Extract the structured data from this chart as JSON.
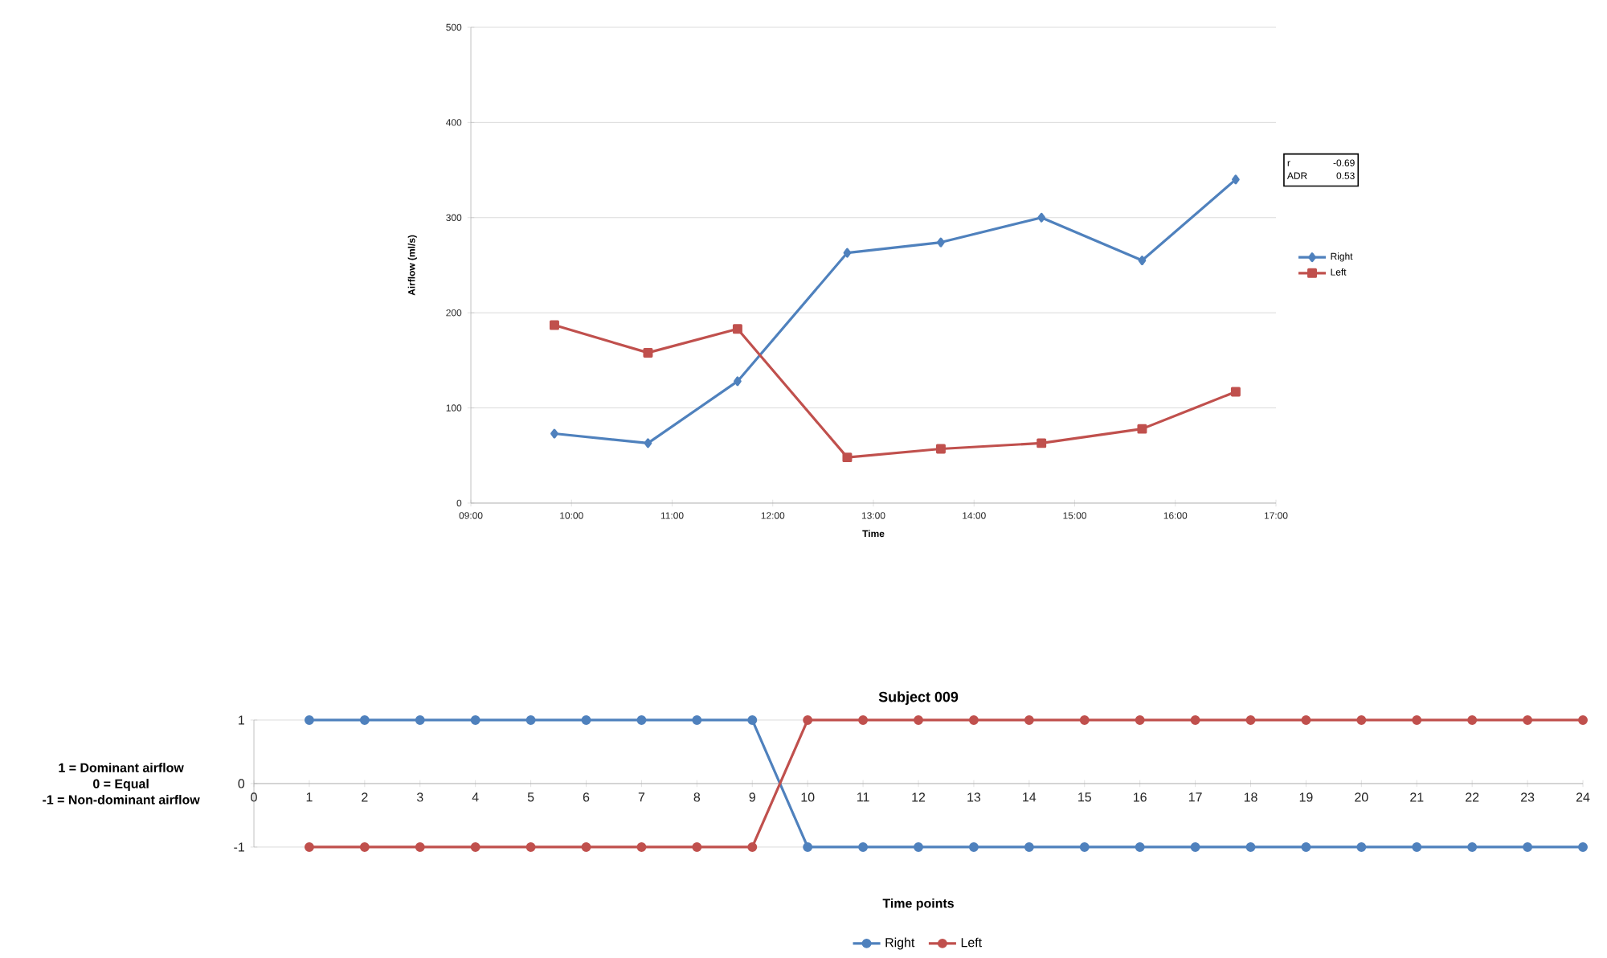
{
  "chart_data": [
    {
      "type": "line",
      "xlabel": "Time",
      "ylabel": "Airflow (ml/s)",
      "annotations": [
        "r",
        "-0.69",
        "ADR",
        "0.53"
      ],
      "xlim": [
        9,
        17
      ],
      "xticks": [
        {
          "value": 9,
          "label": "09:00"
        },
        {
          "value": 10,
          "label": "10:00"
        },
        {
          "value": 11,
          "label": "11:00"
        },
        {
          "value": 12,
          "label": "12:00"
        },
        {
          "value": 13,
          "label": "13:00"
        },
        {
          "value": 14,
          "label": "14:00"
        },
        {
          "value": 15,
          "label": "15:00"
        },
        {
          "value": 16,
          "label": "16:00"
        },
        {
          "value": 17,
          "label": "17:00"
        }
      ],
      "ylim": [
        0,
        500
      ],
      "yticks": [
        0,
        100,
        200,
        300,
        400,
        500
      ],
      "grid": "y",
      "legend": "right",
      "x": [
        9.83,
        10.76,
        11.65,
        12.74,
        13.67,
        14.67,
        15.67,
        16.6
      ],
      "series": [
        {
          "name": "Right",
          "color": "#4f81bd",
          "marker": "diamond",
          "values": [
            73,
            63,
            128,
            263,
            274,
            300,
            255,
            340
          ]
        },
        {
          "name": "Left",
          "color": "#c0504d",
          "marker": "square",
          "values": [
            187,
            158,
            183,
            48,
            57,
            63,
            78,
            117
          ]
        }
      ]
    },
    {
      "type": "line",
      "title": "Subject 009",
      "xlabel": "Time points",
      "annotations": [
        "1 = Dominant airflow",
        "0 = Equal",
        "-1 = Non-dominant airflow"
      ],
      "xlim": [
        0,
        24
      ],
      "xticks": [
        0,
        1,
        2,
        3,
        4,
        5,
        6,
        7,
        8,
        9,
        10,
        11,
        12,
        13,
        14,
        15,
        16,
        17,
        18,
        19,
        20,
        21,
        22,
        23,
        24
      ],
      "ylim": [
        -1,
        1
      ],
      "yticks": [
        -1,
        0,
        1
      ],
      "grid": "y",
      "legend": "bottom",
      "marker": "circle",
      "x": [
        1,
        2,
        3,
        4,
        5,
        6,
        7,
        8,
        9,
        10,
        11,
        12,
        13,
        14,
        15,
        16,
        17,
        18,
        19,
        20,
        21,
        22,
        23,
        24
      ],
      "series": [
        {
          "name": "Right",
          "color": "#4f81bd",
          "values": [
            1,
            1,
            1,
            1,
            1,
            1,
            1,
            1,
            1,
            -1,
            -1,
            -1,
            -1,
            -1,
            -1,
            -1,
            -1,
            -1,
            -1,
            -1,
            -1,
            -1,
            -1,
            -1
          ]
        },
        {
          "name": "Left",
          "color": "#c0504d",
          "values": [
            -1,
            -1,
            -1,
            -1,
            -1,
            -1,
            -1,
            -1,
            -1,
            1,
            1,
            1,
            1,
            1,
            1,
            1,
            1,
            1,
            1,
            1,
            1,
            1,
            1,
            1
          ]
        }
      ]
    }
  ]
}
